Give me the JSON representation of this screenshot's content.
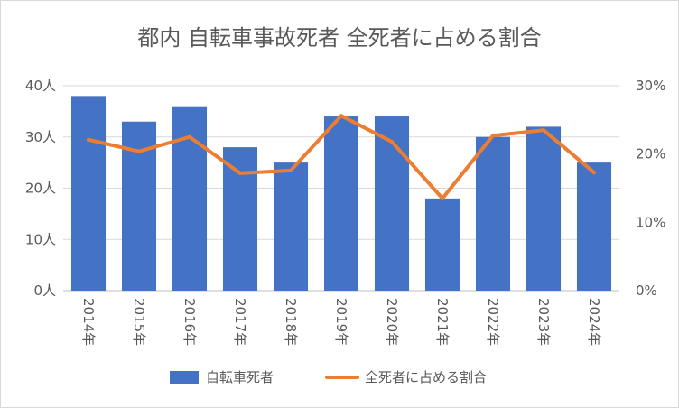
{
  "chart_data": {
    "type": "bar",
    "title": "都内 自転車事故死者 全死者に占める割合",
    "categories": [
      "2014年",
      "2015年",
      "2016年",
      "2017年",
      "2018年",
      "2019年",
      "2020年",
      "2021年",
      "2022年",
      "2023年",
      "2024年"
    ],
    "series": [
      {
        "name": "自転車死者",
        "type": "bar",
        "axis": "left",
        "color": "#4472C4",
        "values": [
          38,
          33,
          36,
          28,
          25,
          34,
          34,
          18,
          30,
          32,
          25
        ]
      },
      {
        "name": "全死者に占める割合",
        "type": "line",
        "axis": "right",
        "color": "#ED7D31",
        "values": [
          22.1,
          20.4,
          22.5,
          17.2,
          17.6,
          25.6,
          21.8,
          13.5,
          22.7,
          23.5,
          17.3
        ]
      }
    ],
    "y_left": {
      "range": [
        0,
        40
      ],
      "ticks": [
        0,
        10,
        20,
        30,
        40
      ],
      "tick_labels": [
        "0人",
        "10人",
        "20人",
        "30人",
        "40人"
      ]
    },
    "y_right": {
      "range": [
        0,
        30
      ],
      "ticks": [
        0,
        10,
        20,
        30
      ],
      "tick_labels": [
        "0%",
        "10%",
        "20%",
        "30%"
      ]
    },
    "grid": true,
    "legend": "bottom"
  }
}
